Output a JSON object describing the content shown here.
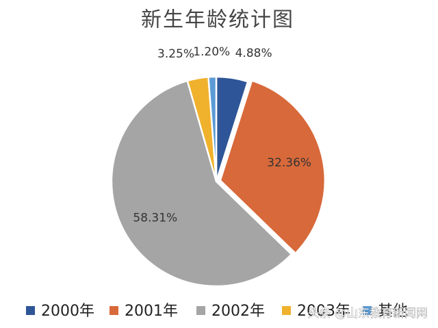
{
  "chart_data": {
    "type": "pie",
    "title": "新生年龄统计图",
    "categories": [
      "2000年",
      "2001年",
      "2002年",
      "2003年",
      "其他"
    ],
    "values": [
      4.88,
      32.36,
      58.31,
      3.25,
      1.2
    ],
    "value_labels": [
      "4.88%",
      "32.36%",
      "58.31%",
      "3.25%",
      "1.20%"
    ],
    "colors": [
      "#2e5597",
      "#d8693a",
      "#a5a5a5",
      "#f0b12c",
      "#5b9bd5"
    ],
    "legend": "bottom"
  },
  "watermark": "头条 @山东教育新闻网"
}
